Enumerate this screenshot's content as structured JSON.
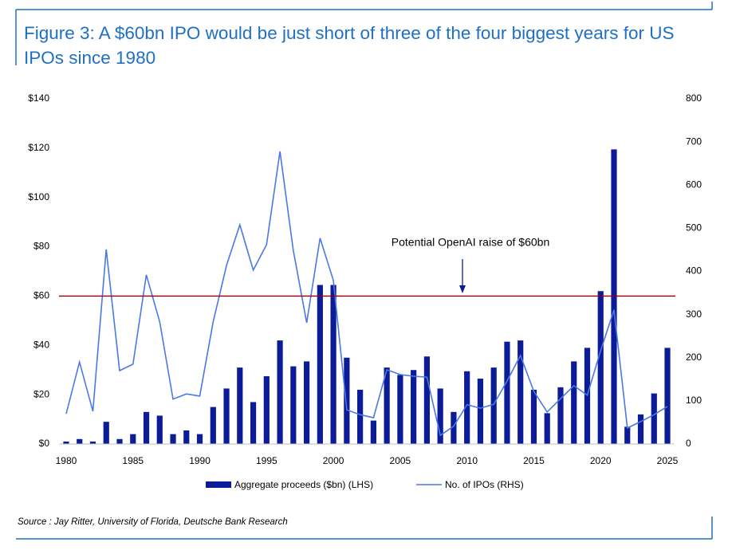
{
  "chart_data": {
    "type": "combo",
    "title": "Figure 3: A $60bn IPO would be just short of three of the four biggest years for US IPOs since 1980",
    "source": "Source : Jay Ritter, University of Florida, Deutsche Bank Research",
    "x": [
      1980,
      1981,
      1982,
      1983,
      1984,
      1985,
      1986,
      1987,
      1988,
      1989,
      1990,
      1991,
      1992,
      1993,
      1994,
      1995,
      1996,
      1997,
      1998,
      1999,
      2000,
      2001,
      2002,
      2003,
      2004,
      2005,
      2006,
      2007,
      2008,
      2009,
      2010,
      2011,
      2012,
      2013,
      2014,
      2015,
      2016,
      2017,
      2018,
      2019,
      2020,
      2021,
      2022,
      2023,
      2024,
      2025
    ],
    "xlim": [
      1979.5,
      2025.5
    ],
    "xticks": [
      1980,
      1985,
      1990,
      1995,
      2000,
      2005,
      2010,
      2015,
      2020,
      2025
    ],
    "ylim": [
      0,
      140
    ],
    "yticks": [
      {
        "value": 0,
        "label": "$0"
      },
      {
        "value": 20,
        "label": "$20"
      },
      {
        "value": 40,
        "label": "$40"
      },
      {
        "value": 60,
        "label": "$60"
      },
      {
        "value": 80,
        "label": "$80"
      },
      {
        "value": 100,
        "label": "$100"
      },
      {
        "value": 120,
        "label": "$120"
      },
      {
        "value": 140,
        "label": "$140"
      }
    ],
    "y2lim": [
      0,
      800
    ],
    "y2ticks": [
      0,
      100,
      200,
      300,
      400,
      500,
      600,
      700,
      800
    ],
    "series": [
      {
        "name": "Aggregate proceeds ($bn) (LHS)",
        "type": "bar",
        "color": "#0c1c99",
        "values": [
          1,
          2,
          1,
          9,
          2,
          4,
          13,
          11.5,
          4,
          5.5,
          4,
          15,
          22.5,
          31,
          17,
          27.5,
          42,
          31.5,
          33.5,
          64.5,
          64.5,
          35,
          22,
          9.5,
          31,
          28,
          30,
          35.5,
          22.5,
          13,
          29.5,
          26.5,
          31,
          41.5,
          42,
          22,
          12.5,
          23,
          33.5,
          39,
          62,
          119.5,
          7,
          12,
          20.5,
          39
        ]
      },
      {
        "name": "No. of IPOs (RHS)",
        "type": "line",
        "axis": "y2",
        "color": "#4a78e6",
        "values": [
          70,
          190,
          76,
          451,
          170,
          185,
          392,
          283,
          104,
          116,
          111,
          283,
          414,
          508,
          403,
          462,
          678,
          449,
          281,
          477,
          379,
          79,
          68,
          61,
          172,
          161,
          157,
          155,
          20,
          41,
          91,
          83,
          92,
          146,
          205,
          122,
          74,
          105,
          135,
          113,
          216,
          311,
          37,
          52,
          68,
          87
        ]
      }
    ],
    "reference_line": {
      "value": 60,
      "color": "#8b0000",
      "label": "Potential OpenAI raise of $60bn"
    }
  }
}
